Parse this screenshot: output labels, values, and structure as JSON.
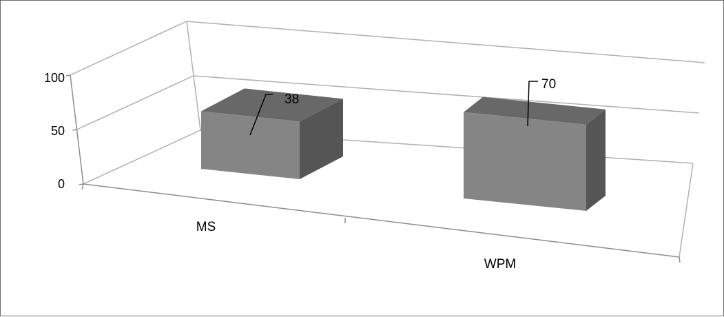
{
  "chart_data": {
    "type": "bar",
    "categories": [
      "MS",
      "WPM"
    ],
    "values": [
      38,
      70
    ],
    "ylim": [
      0,
      100
    ],
    "y_ticks": [
      "0",
      "50",
      "100"
    ],
    "title": "",
    "xlabel": "",
    "ylabel": "",
    "grid": true,
    "legend": "none",
    "colors": {
      "bar_front": "#858585",
      "bar_top": "#686868",
      "bar_side": "#555555",
      "grid": "#b0b0b0",
      "axis": "#8c8c8c"
    }
  }
}
